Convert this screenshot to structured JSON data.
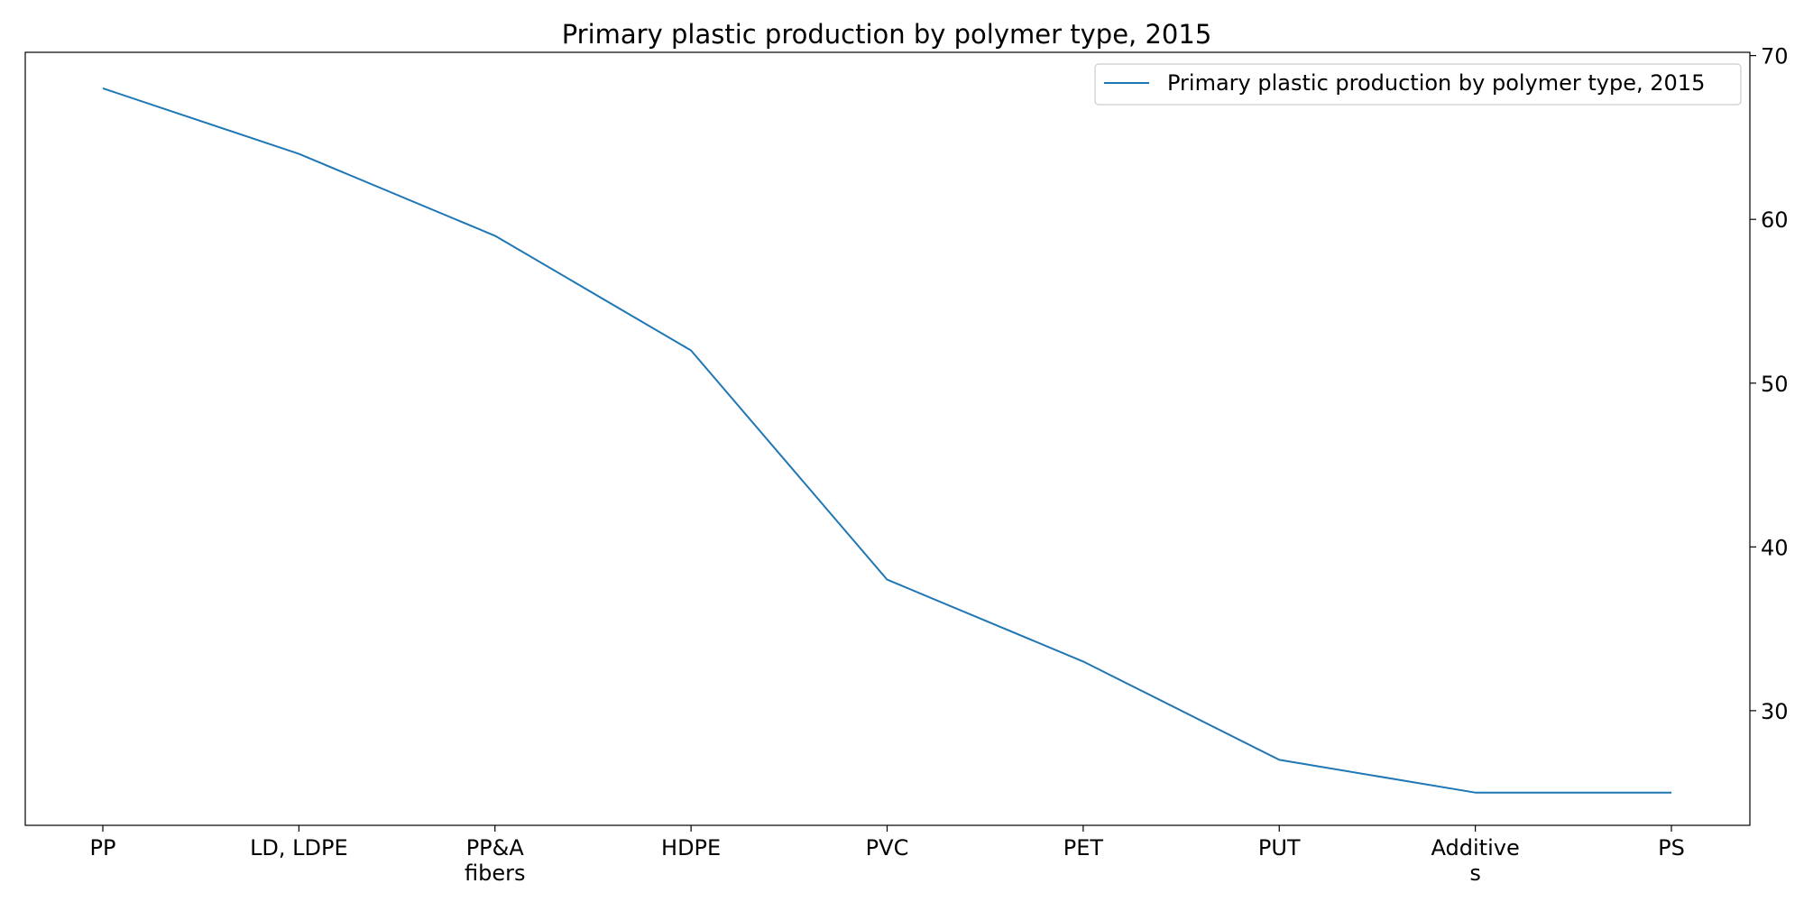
{
  "chart_data": {
    "type": "line",
    "title": "Primary plastic production by polymer type, 2015",
    "categories": [
      [
        "PP"
      ],
      [
        "LD, LDPE"
      ],
      [
        "PP&A",
        "fibers"
      ],
      [
        "HDPE"
      ],
      [
        "PVC"
      ],
      [
        "PET"
      ],
      [
        "PUT"
      ],
      [
        "Additive",
        "s"
      ],
      [
        "PS"
      ]
    ],
    "series": [
      {
        "name": "Primary plastic production by polymer type, 2015",
        "values": [
          68,
          64,
          59,
          52,
          38,
          33,
          27,
          25,
          25
        ],
        "color": "#1f77b4"
      }
    ],
    "xlabel": "",
    "ylabel": "",
    "ylim": [
      23,
      70.2
    ],
    "yticks": [
      30,
      40,
      50,
      60,
      70
    ],
    "y_axis_side": "right",
    "grid": false,
    "legend_position": "top-right"
  }
}
